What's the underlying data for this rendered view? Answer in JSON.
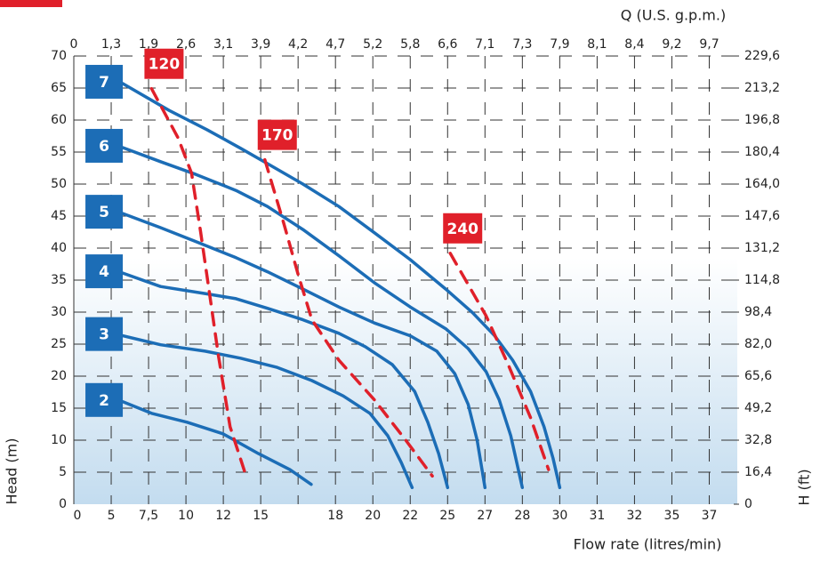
{
  "chart_data": {
    "type": "line",
    "x_label": "Flow rate (litres/min)",
    "x2_label": "Q (U.S. g.p.m.)",
    "y_label": "Head (m)",
    "y2_label": "H (ft)",
    "xlim": [
      0,
      17.75
    ],
    "ylim": [
      0,
      70
    ],
    "y2lim": [
      0,
      229.6
    ],
    "grid": true,
    "xticks": [
      {
        "value": 0,
        "label": "0"
      },
      {
        "value": 1,
        "label": "5"
      },
      {
        "value": 2,
        "label": "7,5"
      },
      {
        "value": 3,
        "label": "10"
      },
      {
        "value": 4,
        "label": "12"
      },
      {
        "value": 5,
        "label": "15"
      },
      {
        "value": 7,
        "label": "18"
      },
      {
        "value": 8,
        "label": "20"
      },
      {
        "value": 9,
        "label": "22"
      },
      {
        "value": 10,
        "label": "25"
      },
      {
        "value": 11,
        "label": "27"
      },
      {
        "value": 12,
        "label": "28"
      },
      {
        "value": 13,
        "label": "30"
      },
      {
        "value": 14,
        "label": "31"
      },
      {
        "value": 15,
        "label": "32"
      },
      {
        "value": 16,
        "label": "35"
      },
      {
        "value": 17,
        "label": "37"
      }
    ],
    "x2ticks": [
      0,
      {
        "value": 1,
        "label": "1,3"
      },
      {
        "value": 2,
        "label": "1,9"
      },
      {
        "value": 3,
        "label": "2,6"
      },
      {
        "value": 4,
        "label": "3,1"
      },
      {
        "value": 5,
        "label": "3,9"
      },
      {
        "value": 6,
        "label": "4,2"
      },
      {
        "value": 7,
        "label": "4,7"
      },
      {
        "value": 8,
        "label": "5,2"
      },
      {
        "value": 9,
        "label": "5,8"
      },
      {
        "value": 10,
        "label": "6,6"
      },
      {
        "value": 11,
        "label": "7,1"
      },
      {
        "value": 12,
        "label": "7,3"
      },
      {
        "value": 13,
        "label": "7,9"
      },
      {
        "value": 14,
        "label": "8,1"
      },
      {
        "value": 15,
        "label": "8,4"
      },
      {
        "value": 16,
        "label": "9,2"
      },
      {
        "value": 17,
        "label": "9,7"
      }
    ],
    "yticks": [
      0,
      5,
      10,
      15,
      20,
      25,
      30,
      35,
      40,
      45,
      50,
      55,
      60,
      65,
      70
    ],
    "y2ticks": [
      0,
      {
        "value": 16.4,
        "label": "16,4"
      },
      {
        "value": 32.8,
        "label": "32,8"
      },
      {
        "value": 49.2,
        "label": "49,2"
      },
      {
        "value": 65.6,
        "label": "65,6"
      },
      {
        "value": 82.0,
        "label": "82,0"
      },
      {
        "value": 98.4,
        "label": "98,4"
      },
      {
        "value": 114.8,
        "label": "114,8"
      },
      {
        "value": 131.2,
        "label": "131,2"
      },
      {
        "value": 147.6,
        "label": "147,6"
      },
      {
        "value": 164.0,
        "label": "164,0"
      },
      {
        "value": 180.4,
        "label": "180,4"
      },
      {
        "value": 196.8,
        "label": "196,8"
      },
      {
        "value": 213.2,
        "label": "213,2"
      },
      {
        "value": 229.6,
        "label": "229,6"
      }
    ],
    "series": [
      {
        "name": "7",
        "color": "#1c6db6",
        "dash": false,
        "x": [
          1.31,
          2.55,
          3.56,
          4.46,
          5.18,
          6.13,
          7.09,
          8.04,
          9.0,
          9.95,
          10.67,
          11.26,
          11.74,
          12.22,
          12.58,
          12.82,
          13.0
        ],
        "values": [
          65.7,
          61.5,
          58.5,
          55.6,
          53.2,
          50,
          46.5,
          42.4,
          38.2,
          33.6,
          29.9,
          26.3,
          22.5,
          17.6,
          12.1,
          7.2,
          2.6
        ]
      },
      {
        "name": "6",
        "color": "#1c6db6",
        "dash": false,
        "x": [
          1.31,
          2.32,
          3.27,
          4.34,
          5.18,
          6.13,
          7.09,
          8.04,
          9.0,
          9.95,
          10.55,
          11.03,
          11.38,
          11.69,
          12.0
        ],
        "values": [
          55.7,
          53.5,
          51.5,
          49,
          46.5,
          42.9,
          38.8,
          34.6,
          30.8,
          27.4,
          24.3,
          20.7,
          16.3,
          10.7,
          2.6
        ]
      },
      {
        "name": "5",
        "color": "#1c6db6",
        "dash": false,
        "x": [
          1.31,
          2.32,
          3.27,
          4.34,
          5.18,
          6.13,
          7.09,
          8.04,
          9.0,
          9.71,
          10.19,
          10.55,
          10.79,
          11.0
        ],
        "values": [
          45.4,
          43.2,
          41,
          38.5,
          36.3,
          33.6,
          30.8,
          28.3,
          26.3,
          23.9,
          20.4,
          15.6,
          10,
          2.6
        ]
      },
      {
        "name": "4",
        "color": "#1c6db6",
        "dash": false,
        "x": [
          1.31,
          2.32,
          3.51,
          4.34,
          5.18,
          6.13,
          7.09,
          7.8,
          8.52,
          9.12,
          9.47,
          9.76,
          10.0
        ],
        "values": [
          36.1,
          34,
          32.9,
          32.1,
          30.6,
          28.8,
          26.7,
          24.6,
          21.8,
          17.6,
          12.8,
          7.9,
          2.6
        ]
      },
      {
        "name": "3",
        "color": "#1c6db6",
        "dash": false,
        "x": [
          1.31,
          2.32,
          3.51,
          4.46,
          5.42,
          6.37,
          7.21,
          7.92,
          8.4,
          8.76,
          9.05
        ],
        "values": [
          26.3,
          24.9,
          23.9,
          22.8,
          21.4,
          19.3,
          16.9,
          14.2,
          10.7,
          6.5,
          2.6
        ]
      },
      {
        "name": "2",
        "color": "#1c6db6",
        "dash": false,
        "x": [
          1.31,
          2.08,
          3.03,
          3.99,
          4.94,
          5.78,
          6.35
        ],
        "values": [
          16,
          14.2,
          12.8,
          11,
          7.9,
          5.4,
          3.1
        ]
      },
      {
        "name": "120",
        "color": "#e0202a",
        "dash": true,
        "x": [
          2.08,
          2.79,
          3.15,
          3.39,
          3.63,
          3.87,
          4.18,
          4.61
        ],
        "values": [
          64.9,
          57.2,
          51.7,
          42.6,
          32.9,
          23.2,
          12.1,
          4.4
        ]
      },
      {
        "name": "170",
        "color": "#e0202a",
        "dash": true,
        "x": [
          5.11,
          5.61,
          6.01,
          6.37,
          7.09,
          8.04,
          8.88,
          9.59
        ],
        "values": [
          53.8,
          44,
          35.7,
          28.8,
          22.5,
          16.3,
          10,
          4.4
        ]
      },
      {
        "name": "240",
        "color": "#e0202a",
        "dash": true,
        "x": [
          10.07,
          10.55,
          11.03,
          11.62,
          12.22,
          12.7
        ],
        "values": [
          39.2,
          34.3,
          29.4,
          21.8,
          13.5,
          5.4
        ]
      }
    ]
  }
}
